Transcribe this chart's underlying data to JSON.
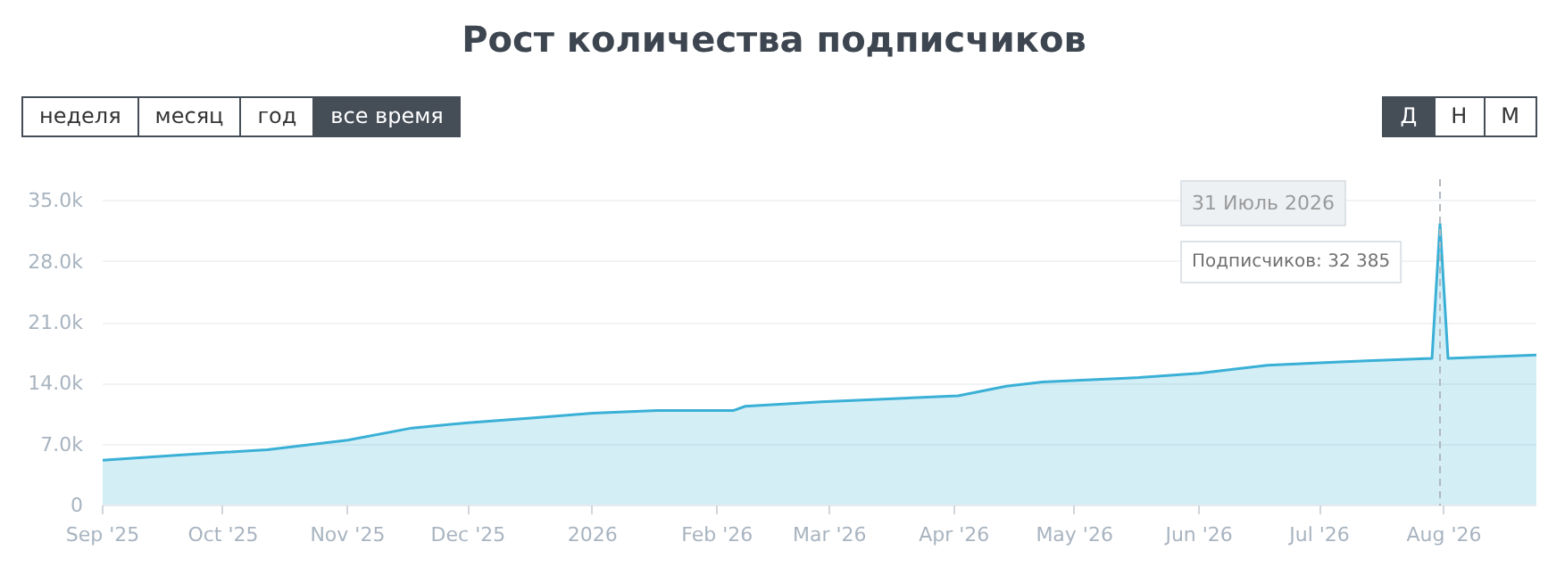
{
  "chart_data": {
    "type": "area",
    "title": "Рост количества подписчиков",
    "x": [
      "2025-09-01",
      "2025-09-20",
      "2025-10-12",
      "2025-11-01",
      "2025-11-17",
      "2025-12-01",
      "2025-12-18",
      "2026-01-01",
      "2026-01-17",
      "2026-02-05",
      "2026-02-08",
      "2026-02-27",
      "2026-04-02",
      "2026-04-14",
      "2026-04-23",
      "2026-05-17",
      "2026-06-01",
      "2026-06-18",
      "2026-07-06",
      "2026-07-29",
      "2026-07-31",
      "2026-08-02",
      "2026-08-24"
    ],
    "series": [
      {
        "color": "#3ab0d6",
        "values": [
          5200,
          5800,
          6400,
          7500,
          8900,
          9500,
          10100,
          10600,
          10900,
          10900,
          11400,
          11900,
          12600,
          13700,
          14200,
          14700,
          15200,
          16100,
          16500,
          16900,
          32385,
          16900,
          17300
        ]
      }
    ],
    "xlim": [
      "2025-09-01",
      "2026-08-24"
    ],
    "xticks": [
      {
        "value": "2025-09-01",
        "label": "Sep '25"
      },
      {
        "value": "2025-10-01",
        "label": "Oct '25"
      },
      {
        "value": "2025-11-01",
        "label": "Nov '25"
      },
      {
        "value": "2025-12-01",
        "label": "Dec '25"
      },
      {
        "value": "2026-01-01",
        "label": "2026"
      },
      {
        "value": "2026-02-01",
        "label": "Feb '26"
      },
      {
        "value": "2026-03-01",
        "label": "Mar '26"
      },
      {
        "value": "2026-04-01",
        "label": "Apr '26"
      },
      {
        "value": "2026-05-01",
        "label": "May '26"
      },
      {
        "value": "2026-06-01",
        "label": "Jun '26"
      },
      {
        "value": "2026-07-01",
        "label": "Jul '26"
      },
      {
        "value": "2026-08-01",
        "label": "Aug '26"
      }
    ],
    "ylim": [
      0,
      37500
    ],
    "yticks": [
      0,
      {
        "value": 7000,
        "label": "7.0k"
      },
      {
        "value": 14000,
        "label": "14.0k"
      },
      {
        "value": 21000,
        "label": "21.0k"
      },
      {
        "value": 28000,
        "label": "28.0k"
      },
      {
        "value": 35000,
        "label": "35.0k"
      }
    ],
    "grid": "y",
    "ref_lines": [
      {
        "axis": "x",
        "value": "2026-07-31",
        "line_style": "dashed",
        "color": "#b0b8c0"
      }
    ],
    "annotations": [
      "неделя",
      "месяц",
      "год",
      "все время",
      "Д",
      "Н",
      "М",
      "31 Июль 2026",
      "Подписчиков: 32 385"
    ]
  }
}
